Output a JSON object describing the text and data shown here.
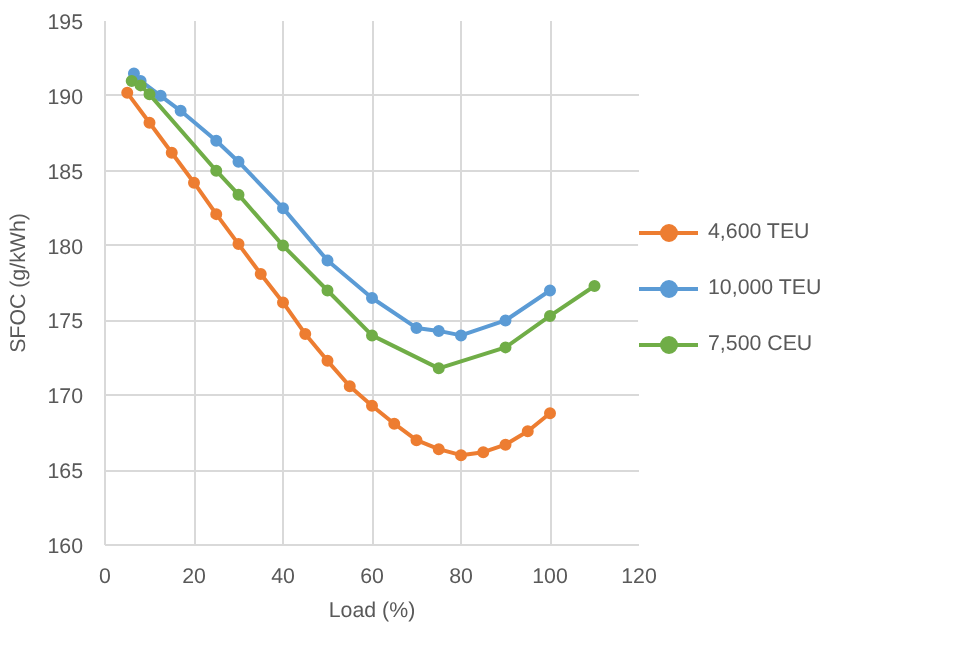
{
  "chart_data": {
    "type": "line",
    "xlabel": "Load (%)",
    "ylabel": "SFOC (g/kWh)",
    "xlim": [
      0,
      120
    ],
    "xticks": [
      0,
      20,
      40,
      60,
      80,
      100,
      120
    ],
    "ylim": [
      160,
      195
    ],
    "yticks": [
      160,
      165,
      170,
      175,
      180,
      185,
      190,
      195
    ],
    "grid": true,
    "legend": "right",
    "marker": "circle",
    "line_style": "solid",
    "series": [
      {
        "name": "4,600 TEU",
        "color": "#ed7d31",
        "x": [
          5,
          10,
          15,
          20,
          25,
          30,
          35,
          40,
          45,
          50,
          55,
          60,
          65,
          70,
          75,
          80,
          85,
          90,
          95,
          100
        ],
        "values": [
          190.2,
          188.2,
          186.2,
          184.2,
          182.1,
          180.1,
          178.1,
          176.2,
          174.1,
          172.3,
          170.6,
          169.3,
          168.1,
          167,
          166.4,
          166,
          166.2,
          166.7,
          167.6,
          168.8
        ]
      },
      {
        "name": "10,000 TEU",
        "color": "#5b9bd5",
        "x": [
          6.5,
          8,
          12.5,
          17,
          25,
          30,
          40,
          50,
          60,
          70,
          75,
          80,
          90,
          100
        ],
        "values": [
          191.5,
          191,
          190,
          189,
          187,
          185.6,
          182.5,
          179,
          176.5,
          174.5,
          174.3,
          174,
          175,
          177
        ]
      },
      {
        "name": "7,500 CEU",
        "color": "#70ad47",
        "x": [
          6,
          8,
          10,
          25,
          30,
          40,
          50,
          60,
          75,
          90,
          100,
          110
        ],
        "values": [
          191,
          190.7,
          190.1,
          185,
          183.4,
          180,
          177,
          174,
          171.8,
          173.2,
          175.3,
          177.3
        ]
      }
    ]
  }
}
